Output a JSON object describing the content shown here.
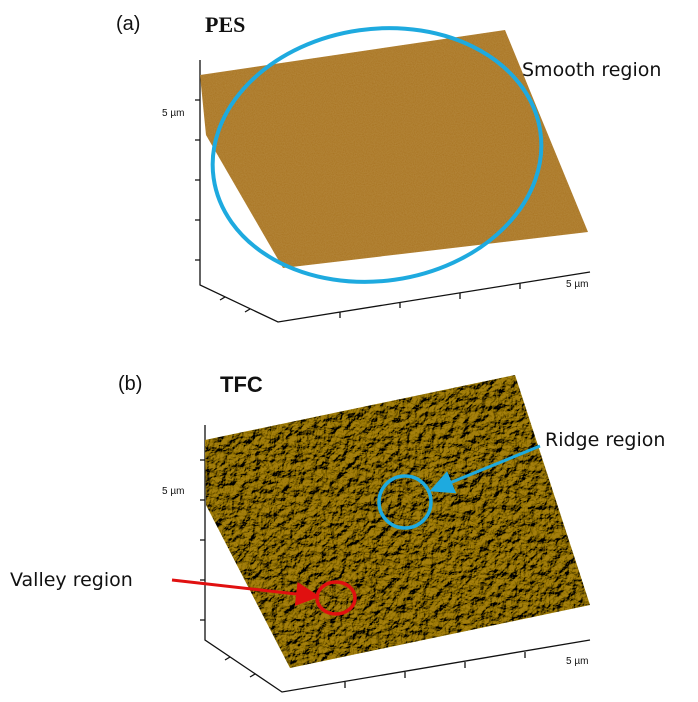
{
  "panels": [
    {
      "label": "(a)",
      "title": "PES",
      "axis_left": "5 µm",
      "axis_bottom": "5 µm",
      "annotations": [
        "Smooth region"
      ]
    },
    {
      "label": "(b)",
      "title": "TFC",
      "axis_left": "5 µm",
      "axis_bottom": "5 µm",
      "annotations": [
        "Ridge region",
        "Valley region"
      ]
    }
  ]
}
